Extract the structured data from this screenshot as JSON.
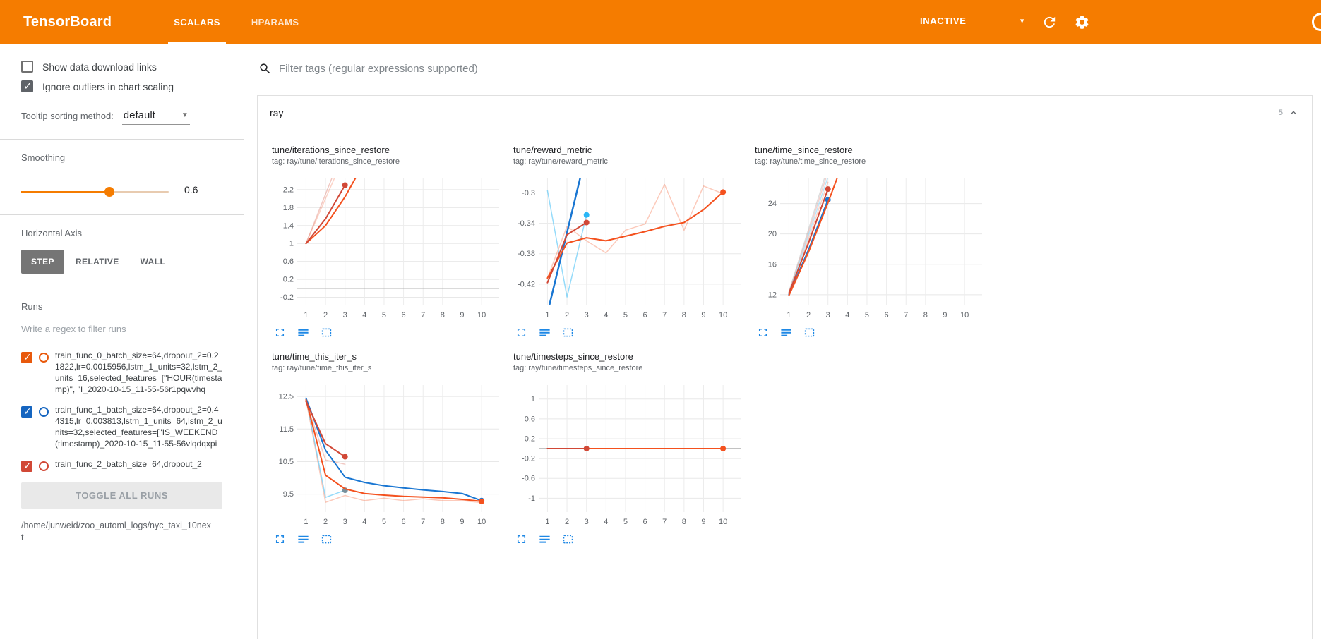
{
  "header": {
    "app_title": "TensorBoard",
    "tabs": [
      {
        "label": "SCALARS",
        "active": true
      },
      {
        "label": "HPARAMS",
        "active": false
      }
    ],
    "status_dropdown": {
      "value": "INACTIVE"
    }
  },
  "sidebar": {
    "options": [
      {
        "label": "Show data download links",
        "checked": false
      },
      {
        "label": "Ignore outliers in chart scaling",
        "checked": true
      }
    ],
    "tooltip_sorting": {
      "label": "Tooltip sorting method:",
      "value": "default"
    },
    "smoothing": {
      "label": "Smoothing",
      "value": "0.6"
    },
    "horizontal_axis": {
      "label": "Horizontal Axis",
      "options": [
        {
          "label": "STEP",
          "selected": true
        },
        {
          "label": "RELATIVE",
          "selected": false
        },
        {
          "label": "WALL",
          "selected": false
        }
      ]
    },
    "runs": {
      "label": "Runs",
      "filter_placeholder": "Write a regex to filter runs",
      "items": [
        {
          "label": "train_func_0_batch_size=64,dropout_2=0.21822,lr=0.0015956,lstm_1_units=32,lstm_2_units=16,selected_features=[\"HOUR(timestamp)\", \"I_2020-10-15_11-55-56r1pqwvhq",
          "checked": true,
          "color": "#e8590c"
        },
        {
          "label": "train_func_1_batch_size=64,dropout_2=0.44315,lr=0.003813,lstm_1_units=64,lstm_2_units=32,selected_features=[\"IS_WEEKEND(timestamp)_2020-10-15_11-55-56vlqdqxpi",
          "checked": true,
          "color": "#1565c0"
        },
        {
          "label": "train_func_2_batch_size=64,dropout_2=",
          "checked": true,
          "color": "#d14836"
        }
      ],
      "toggle_all_label": "TOGGLE ALL RUNS",
      "log_dir": "/home/junweid/zoo_automl_logs/nyc_taxi_10next"
    }
  },
  "main": {
    "tag_filter": {
      "placeholder": "Filter tags (regular expressions supported)"
    },
    "section": {
      "title": "ray",
      "badge": "5"
    }
  },
  "chart_data": [
    {
      "type": "line",
      "title": "tune/iterations_since_restore",
      "subtitle": "tag: ray/tune/iterations_since_restore",
      "xlim": [
        0.55,
        10.9
      ],
      "ylim": [
        -0.38,
        2.45
      ],
      "xticks": [
        1,
        2,
        3,
        4,
        5,
        6,
        7,
        8,
        9,
        10
      ],
      "yticks": [
        {
          "v": -0.2,
          "l": "-0.2"
        },
        {
          "v": 0.2,
          "l": "0.2"
        },
        {
          "v": 0.6,
          "l": "0.6"
        },
        {
          "v": 1,
          "l": "1"
        },
        {
          "v": 1.4,
          "l": "1.4"
        },
        {
          "v": 1.8,
          "l": "1.8"
        },
        {
          "v": 2.2,
          "l": "2.2"
        }
      ],
      "zero_line": true,
      "grid": true,
      "series": [
        {
          "name": "orange-raw",
          "color": "#f4511e",
          "width": 1.5,
          "opacity": 0.25,
          "points": [
            [
              1,
              1
            ],
            [
              2,
              2
            ],
            [
              3,
              3
            ]
          ]
        },
        {
          "name": "red-raw",
          "color": "#d14836",
          "width": 1.5,
          "opacity": 0.3,
          "points": [
            [
              1,
              1
            ],
            [
              2,
              2.1
            ],
            [
              3,
              3.2
            ]
          ]
        },
        {
          "name": "orange-smoothed",
          "color": "#f4511e",
          "width": 2,
          "points": [
            [
              1,
              1
            ],
            [
              2,
              1.4
            ],
            [
              3,
              2.04
            ],
            [
              4,
              2.82
            ]
          ]
        },
        {
          "name": "red-smoothed",
          "color": "#d14836",
          "width": 2,
          "points": [
            [
              1,
              1
            ],
            [
              2,
              1.55
            ],
            [
              3,
              2.3
            ]
          ],
          "end_dot": true
        }
      ]
    },
    {
      "type": "line",
      "title": "tune/reward_metric",
      "subtitle": "tag: ray/tune/reward_metric",
      "xlim": [
        0.55,
        10.9
      ],
      "ylim": [
        -0.448,
        -0.281
      ],
      "xticks": [
        1,
        2,
        3,
        4,
        5,
        6,
        7,
        8,
        9,
        10
      ],
      "yticks": [
        {
          "v": -0.42,
          "l": "-0.42"
        },
        {
          "v": -0.38,
          "l": "-0.38"
        },
        {
          "v": -0.34,
          "l": "-0.34"
        },
        {
          "v": -0.3,
          "l": "-0.3"
        }
      ],
      "zero_line": false,
      "grid": true,
      "series": [
        {
          "name": "cyan-run",
          "color": "#4fc3f7",
          "width": 1.5,
          "opacity": 0.6,
          "points": [
            [
              1,
              -0.297
            ],
            [
              2,
              -0.437
            ],
            [
              3,
              -0.329
            ]
          ],
          "end_dot": true,
          "dot_color": "#29b6f6"
        },
        {
          "name": "orange-raw",
          "color": "#f4511e",
          "width": 1.5,
          "opacity": 0.3,
          "points": [
            [
              1,
              -0.412
            ],
            [
              2,
              -0.344
            ],
            [
              3,
              -0.363
            ],
            [
              4,
              -0.379
            ],
            [
              5,
              -0.349
            ],
            [
              6,
              -0.341
            ],
            [
              7,
              -0.289
            ],
            [
              8,
              -0.349
            ],
            [
              9,
              -0.291
            ],
            [
              10,
              -0.301
            ]
          ]
        },
        {
          "name": "blue-smoothed",
          "color": "#1976d2",
          "width": 2.5,
          "points": [
            [
              1,
              -0.458
            ],
            [
              2,
              -0.352
            ],
            [
              3,
              -0.246
            ]
          ]
        },
        {
          "name": "orange-smoothed",
          "color": "#f4511e",
          "width": 2,
          "points": [
            [
              1,
              -0.412
            ],
            [
              2,
              -0.366
            ],
            [
              3,
              -0.359
            ],
            [
              4,
              -0.363
            ],
            [
              5,
              -0.357
            ],
            [
              6,
              -0.351
            ],
            [
              7,
              -0.344
            ],
            [
              8,
              -0.339
            ],
            [
              9,
              -0.322
            ],
            [
              10,
              -0.299
            ]
          ],
          "end_dot": true
        },
        {
          "name": "red-smoothed",
          "color": "#d14836",
          "width": 2,
          "points": [
            [
              1,
              -0.418
            ],
            [
              2,
              -0.355
            ],
            [
              3,
              -0.339
            ]
          ],
          "end_dot": true
        }
      ]
    },
    {
      "type": "line",
      "title": "tune/time_since_restore",
      "subtitle": "tag: ray/tune/time_since_restore",
      "xlim": [
        0.55,
        10.9
      ],
      "ylim": [
        10.6,
        27.3
      ],
      "xticks": [
        1,
        2,
        3,
        4,
        5,
        6,
        7,
        8,
        9,
        10
      ],
      "yticks": [
        {
          "v": 12,
          "l": "12"
        },
        {
          "v": 16,
          "l": "16"
        },
        {
          "v": 20,
          "l": "20"
        },
        {
          "v": 24,
          "l": "24"
        }
      ],
      "zero_line": false,
      "grid": true,
      "series": [
        {
          "name": "orange-raw",
          "color": "#f4511e",
          "width": 1.5,
          "opacity": 0.25,
          "points": [
            [
              1,
              11.9
            ],
            [
              2,
              19.3
            ],
            [
              3,
              26.8
            ]
          ]
        },
        {
          "name": "red-raw",
          "color": "#d14836",
          "width": 1.5,
          "opacity": 0.25,
          "points": [
            [
              1,
              12.3
            ],
            [
              2,
              20.2
            ],
            [
              3,
              28.2
            ]
          ]
        },
        {
          "name": "cyan-raw",
          "color": "#4fc3f7",
          "width": 1.5,
          "opacity": 0.4,
          "points": [
            [
              1,
              12.1
            ],
            [
              2,
              19.8
            ],
            [
              3,
              27.5
            ]
          ]
        },
        {
          "name": "gray-raw",
          "color": "#9e9e9e",
          "width": 1.5,
          "opacity": 0.35,
          "points": [
            [
              1,
              12.4
            ],
            [
              2,
              20.6
            ],
            [
              3,
              28.8
            ]
          ]
        },
        {
          "name": "blue-smoothed",
          "color": "#1976d2",
          "width": 2,
          "points": [
            [
              1,
              12.0
            ],
            [
              2,
              17.9
            ],
            [
              3,
              24.5
            ]
          ],
          "end_dot": true
        },
        {
          "name": "orange-smoothed",
          "color": "#f4511e",
          "width": 2,
          "points": [
            [
              1,
              11.9
            ],
            [
              2,
              17.6
            ],
            [
              3,
              24.1
            ],
            [
              4,
              31
            ]
          ]
        },
        {
          "name": "red-smoothed",
          "color": "#d14836",
          "width": 2,
          "points": [
            [
              1,
              12.2
            ],
            [
              2,
              18.8
            ],
            [
              3,
              25.9
            ]
          ],
          "end_dot": true
        }
      ]
    },
    {
      "type": "line",
      "title": "tune/time_this_iter_s",
      "subtitle": "tag: ray/tune/time_this_iter_s",
      "xlim": [
        0.55,
        10.9
      ],
      "ylim": [
        8.95,
        12.85
      ],
      "xticks": [
        1,
        2,
        3,
        4,
        5,
        6,
        7,
        8,
        9,
        10
      ],
      "yticks": [
        {
          "v": 9.5,
          "l": "9.5"
        },
        {
          "v": 10.5,
          "l": "10.5"
        },
        {
          "v": 11.5,
          "l": "11.5"
        },
        {
          "v": 12.5,
          "l": "12.5"
        }
      ],
      "zero_line": false,
      "grid": true,
      "series": [
        {
          "name": "orange-raw",
          "color": "#f4511e",
          "width": 1.5,
          "opacity": 0.3,
          "points": [
            [
              1,
              12.4
            ],
            [
              2,
              9.25
            ],
            [
              3,
              9.46
            ],
            [
              4,
              9.3
            ],
            [
              5,
              9.38
            ],
            [
              6,
              9.3
            ],
            [
              7,
              9.36
            ],
            [
              8,
              9.3
            ],
            [
              9,
              9.3
            ],
            [
              10,
              9.24
            ]
          ]
        },
        {
          "name": "cyan-run",
          "color": "#4fc3f7",
          "width": 1.5,
          "opacity": 0.6,
          "points": [
            [
              1,
              12.45
            ],
            [
              2,
              9.4
            ],
            [
              3,
              9.62
            ]
          ],
          "end_dot": true,
          "dot_color": "#78909c"
        },
        {
          "name": "red-raw",
          "color": "#d14836",
          "width": 1.5,
          "opacity": 0.3,
          "points": [
            [
              1,
              12.35
            ],
            [
              2,
              10.55
            ],
            [
              3,
              10.42
            ]
          ]
        },
        {
          "name": "blue-smoothed",
          "color": "#1976d2",
          "width": 2,
          "points": [
            [
              1,
              12.45
            ],
            [
              2,
              10.85
            ],
            [
              3,
              10.02
            ],
            [
              4,
              9.86
            ],
            [
              5,
              9.76
            ],
            [
              6,
              9.69
            ],
            [
              7,
              9.63
            ],
            [
              8,
              9.58
            ],
            [
              9,
              9.52
            ],
            [
              10,
              9.3
            ]
          ],
          "end_dot": true
        },
        {
          "name": "orange-smoothed",
          "color": "#f4511e",
          "width": 2,
          "points": [
            [
              1,
              12.4
            ],
            [
              2,
              10.08
            ],
            [
              3,
              9.66
            ],
            [
              4,
              9.52
            ],
            [
              5,
              9.47
            ],
            [
              6,
              9.43
            ],
            [
              7,
              9.41
            ],
            [
              8,
              9.39
            ],
            [
              9,
              9.34
            ],
            [
              10,
              9.28
            ]
          ],
          "end_dot": true
        },
        {
          "name": "red-smoothed",
          "color": "#d14836",
          "width": 2,
          "points": [
            [
              1,
              12.35
            ],
            [
              2,
              11.05
            ],
            [
              3,
              10.65
            ]
          ],
          "end_dot": true
        }
      ]
    },
    {
      "type": "line",
      "title": "tune/timesteps_since_restore",
      "subtitle": "tag: ray/tune/timesteps_since_restore",
      "xlim": [
        0.55,
        10.9
      ],
      "ylim": [
        -1.28,
        1.28
      ],
      "xticks": [
        1,
        2,
        3,
        4,
        5,
        6,
        7,
        8,
        9,
        10
      ],
      "yticks": [
        {
          "v": -1,
          "l": "-1"
        },
        {
          "v": -0.6,
          "l": "-0.6"
        },
        {
          "v": -0.2,
          "l": "-0.2"
        },
        {
          "v": 0.2,
          "l": "0.2"
        },
        {
          "v": 0.6,
          "l": "0.6"
        },
        {
          "v": 1,
          "l": "1"
        }
      ],
      "zero_line": true,
      "grid": true,
      "series": [
        {
          "name": "orange-smoothed",
          "color": "#f4511e",
          "width": 2,
          "points": [
            [
              1,
              0
            ],
            [
              2,
              0
            ],
            [
              3,
              0
            ],
            [
              4,
              0
            ],
            [
              5,
              0
            ],
            [
              6,
              0
            ],
            [
              7,
              0
            ],
            [
              8,
              0
            ],
            [
              9,
              0
            ],
            [
              10,
              0
            ]
          ],
          "end_dot": true
        },
        {
          "name": "red-smoothed",
          "color": "#d14836",
          "width": 2,
          "points": [
            [
              1,
              0
            ],
            [
              2,
              0
            ],
            [
              3,
              0
            ]
          ],
          "end_dot": true
        }
      ]
    }
  ]
}
